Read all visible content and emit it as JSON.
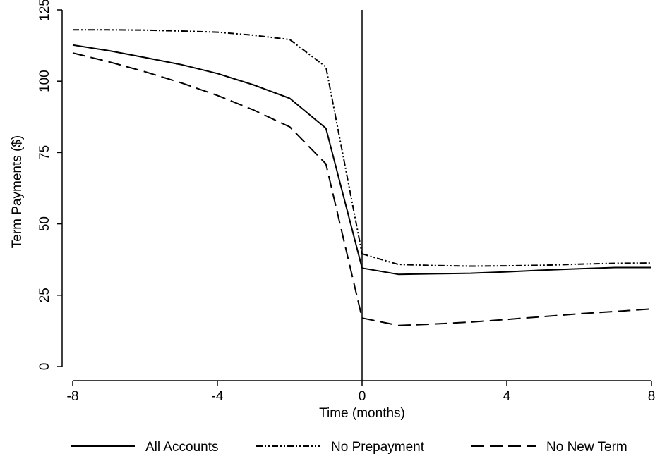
{
  "chart_data": {
    "type": "line",
    "xlabel": "Time (months)",
    "ylabel": "Term Payments ($)",
    "xlim": [
      -8,
      8
    ],
    "ylim": [
      0,
      125
    ],
    "xticks": [
      -8,
      -4,
      0,
      4,
      8
    ],
    "yticks": [
      0,
      25,
      50,
      75,
      100,
      125
    ],
    "reference_line_x": 0,
    "grid": false,
    "legend_position": "bottom",
    "series": [
      {
        "name": "All Accounts",
        "dash": "solid",
        "pre": {
          "x": [
            -8,
            -7,
            -6,
            -5,
            -4,
            -3,
            -2,
            -1,
            0
          ],
          "y": [
            112.7,
            110.7,
            108.3,
            105.8,
            102.7,
            98.7,
            94.0,
            83.5,
            34.5
          ]
        },
        "post": {
          "x": [
            0,
            1,
            2,
            3,
            4,
            5,
            6,
            7,
            8
          ],
          "y": [
            34.5,
            32.3,
            32.5,
            32.7,
            33.2,
            33.8,
            34.3,
            34.7,
            34.7
          ]
        }
      },
      {
        "name": "No Prepayment",
        "dash": "dash-dot-dot",
        "pre": {
          "x": [
            -8,
            -7,
            -6,
            -5,
            -4,
            -3,
            -2,
            -1,
            0
          ],
          "y": [
            118.0,
            118.0,
            117.9,
            117.6,
            117.2,
            116.1,
            114.6,
            105.0,
            39.5
          ]
        },
        "post": {
          "x": [
            0,
            1,
            2,
            3,
            4,
            5,
            6,
            7,
            8
          ],
          "y": [
            39.5,
            35.8,
            35.4,
            35.2,
            35.3,
            35.5,
            35.9,
            36.2,
            36.3
          ]
        }
      },
      {
        "name": "No New Term",
        "dash": "long-dash",
        "pre": {
          "x": [
            -8,
            -7,
            -6,
            -5,
            -4,
            -3,
            -2,
            -1,
            0
          ],
          "y": [
            109.9,
            106.8,
            103.3,
            99.4,
            95.0,
            89.9,
            84.0,
            71.0,
            17.0
          ]
        },
        "post": {
          "x": [
            0,
            1,
            2,
            3,
            4,
            5,
            6,
            7,
            8
          ],
          "y": [
            17.0,
            14.4,
            14.9,
            15.6,
            16.5,
            17.5,
            18.5,
            19.3,
            20.2
          ]
        }
      }
    ]
  }
}
